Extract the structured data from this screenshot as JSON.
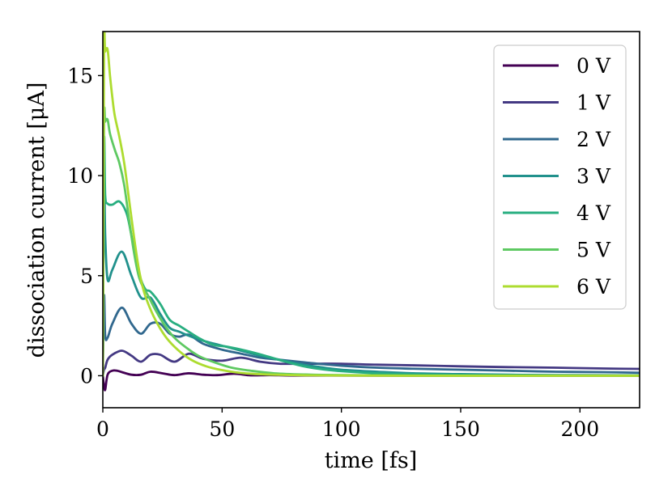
{
  "chart_data": {
    "type": "line",
    "title": "",
    "xlabel": "time [fs]",
    "ylabel": "dissociation current [μA]",
    "xlim": [
      0,
      225
    ],
    "ylim": [
      -1.6,
      17.2
    ],
    "xticks": [
      0,
      50,
      100,
      150,
      200
    ],
    "yticks": [
      0,
      5,
      10,
      15
    ],
    "grid": false,
    "legend_position": "top-right",
    "series": [
      {
        "name": "0 V",
        "color": "#440154",
        "x": [
          0,
          0.5,
          1,
          2,
          4,
          6,
          8,
          12,
          16,
          20,
          25,
          30,
          36,
          42,
          48,
          55,
          62,
          70,
          80,
          100,
          130,
          160,
          190,
          225
        ],
        "y": [
          0,
          -0.5,
          -0.7,
          0.05,
          0.25,
          0.25,
          0.18,
          0.05,
          0.05,
          0.2,
          0.12,
          0.03,
          0.12,
          0.05,
          0.03,
          0.1,
          0.02,
          0.03,
          0.01,
          0.01,
          0.0,
          0.0,
          0.0,
          0.0
        ]
      },
      {
        "name": "1 V",
        "color": "#443983",
        "x": [
          0,
          0.5,
          1,
          2,
          4,
          8,
          12,
          16,
          20,
          24,
          30,
          36,
          42,
          50,
          58,
          66,
          74,
          82,
          90,
          100,
          115,
          130,
          150,
          170,
          190,
          210,
          225
        ],
        "y": [
          0,
          0.3,
          0.4,
          0.8,
          1.05,
          1.25,
          1.0,
          0.7,
          1.05,
          1.05,
          0.7,
          1.1,
          0.85,
          0.75,
          0.9,
          0.7,
          0.6,
          0.6,
          0.6,
          0.6,
          0.55,
          0.52,
          0.47,
          0.43,
          0.4,
          0.36,
          0.34
        ]
      },
      {
        "name": "2 V",
        "color": "#31688e",
        "x": [
          0,
          0.5,
          1,
          2,
          4,
          8,
          12,
          16,
          20,
          24,
          28,
          32,
          36,
          42,
          50,
          58,
          66,
          74,
          82,
          90,
          100,
          115,
          130,
          150,
          170,
          190,
          210,
          225
        ],
        "y": [
          0,
          4.0,
          2.0,
          1.9,
          2.6,
          3.4,
          2.6,
          2.1,
          2.6,
          2.6,
          2.1,
          1.95,
          2.05,
          1.6,
          1.3,
          1.1,
          0.9,
          0.8,
          0.7,
          0.6,
          0.5,
          0.4,
          0.35,
          0.3,
          0.25,
          0.2,
          0.18,
          0.15
        ]
      },
      {
        "name": "3 V",
        "color": "#21918c",
        "x": [
          0,
          0.5,
          1,
          2,
          4,
          8,
          12,
          16,
          20,
          24,
          28,
          32,
          36,
          42,
          50,
          58,
          66,
          74,
          82,
          90,
          100,
          115,
          130,
          150,
          170,
          190,
          225
        ],
        "y": [
          0,
          10.0,
          7.0,
          4.8,
          5.3,
          6.2,
          5.0,
          3.9,
          3.9,
          3.1,
          2.4,
          2.2,
          2.0,
          1.75,
          1.5,
          1.25,
          1.0,
          0.8,
          0.6,
          0.45,
          0.3,
          0.2,
          0.12,
          0.08,
          0.05,
          0.03,
          0.02
        ]
      },
      {
        "name": "4 V",
        "color": "#28ae80",
        "x": [
          0,
          0.5,
          1,
          2,
          4,
          7,
          10,
          12,
          14,
          16,
          18,
          20,
          24,
          28,
          32,
          36,
          40,
          46,
          52,
          60,
          68,
          76,
          85,
          95,
          110,
          130,
          160,
          225
        ],
        "y": [
          0,
          11.6,
          9.0,
          8.6,
          8.55,
          8.7,
          8.1,
          7.0,
          5.8,
          4.8,
          4.3,
          4.2,
          3.6,
          2.8,
          2.5,
          2.2,
          1.9,
          1.55,
          1.45,
          1.25,
          1.0,
          0.72,
          0.45,
          0.28,
          0.15,
          0.07,
          0.03,
          0.01
        ]
      },
      {
        "name": "5 V",
        "color": "#5ec962",
        "x": [
          0,
          0.5,
          1,
          2,
          3,
          5,
          7,
          9,
          11,
          13,
          15,
          17,
          19,
          22,
          26,
          30,
          35,
          40,
          46,
          54,
          62,
          72,
          85,
          100,
          125,
          160,
          225
        ],
        "y": [
          0,
          12.4,
          12.7,
          12.8,
          12.1,
          11.3,
          10.6,
          9.5,
          7.8,
          6.2,
          5.0,
          4.4,
          4.0,
          3.3,
          2.5,
          1.9,
          1.4,
          1.0,
          0.7,
          0.4,
          0.25,
          0.12,
          0.06,
          0.03,
          0.01,
          0.0,
          0.0
        ]
      },
      {
        "name": "6 V",
        "color": "#addc30",
        "x": [
          0,
          0.5,
          1,
          2,
          3,
          4,
          5,
          7,
          9,
          11,
          13,
          15,
          17,
          19,
          22,
          26,
          30,
          35,
          40,
          46,
          54,
          62,
          72,
          85,
          100,
          125,
          160,
          225
        ],
        "y": [
          0,
          16.0,
          16.2,
          16.3,
          15.0,
          13.9,
          13.0,
          11.9,
          10.6,
          8.8,
          7.0,
          5.4,
          4.3,
          3.6,
          2.8,
          2.0,
          1.45,
          0.95,
          0.62,
          0.38,
          0.2,
          0.1,
          0.05,
          0.02,
          0.01,
          0.0,
          0.0,
          0.0
        ]
      }
    ]
  }
}
